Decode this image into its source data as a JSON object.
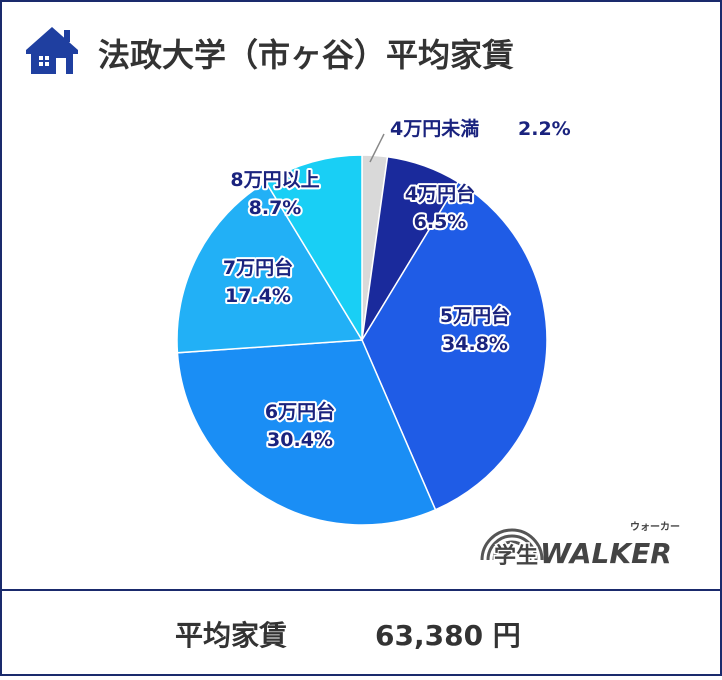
{
  "chart_data": {
    "type": "pie",
    "title": "法政大学（市ヶ谷）平均家賃",
    "categories": [
      "4万円未満",
      "4万円台",
      "5万円台",
      "6万円台",
      "7万円台",
      "8万円以上"
    ],
    "values": [
      2.2,
      6.5,
      34.8,
      30.4,
      17.4,
      8.7
    ],
    "value_labels": [
      "2.2%",
      "6.5%",
      "34.8%",
      "30.4%",
      "17.4%",
      "8.7%"
    ],
    "colors": [
      "#d9d9d9",
      "#1a2a9c",
      "#1f5ce6",
      "#1a8ef5",
      "#22b0f6",
      "#19cff5"
    ]
  },
  "footer": {
    "label": "平均家賃",
    "value": "63,380 円"
  },
  "logo": {
    "text": "学生",
    "brand": "WALKER",
    "ruby": "ウォーカー"
  }
}
